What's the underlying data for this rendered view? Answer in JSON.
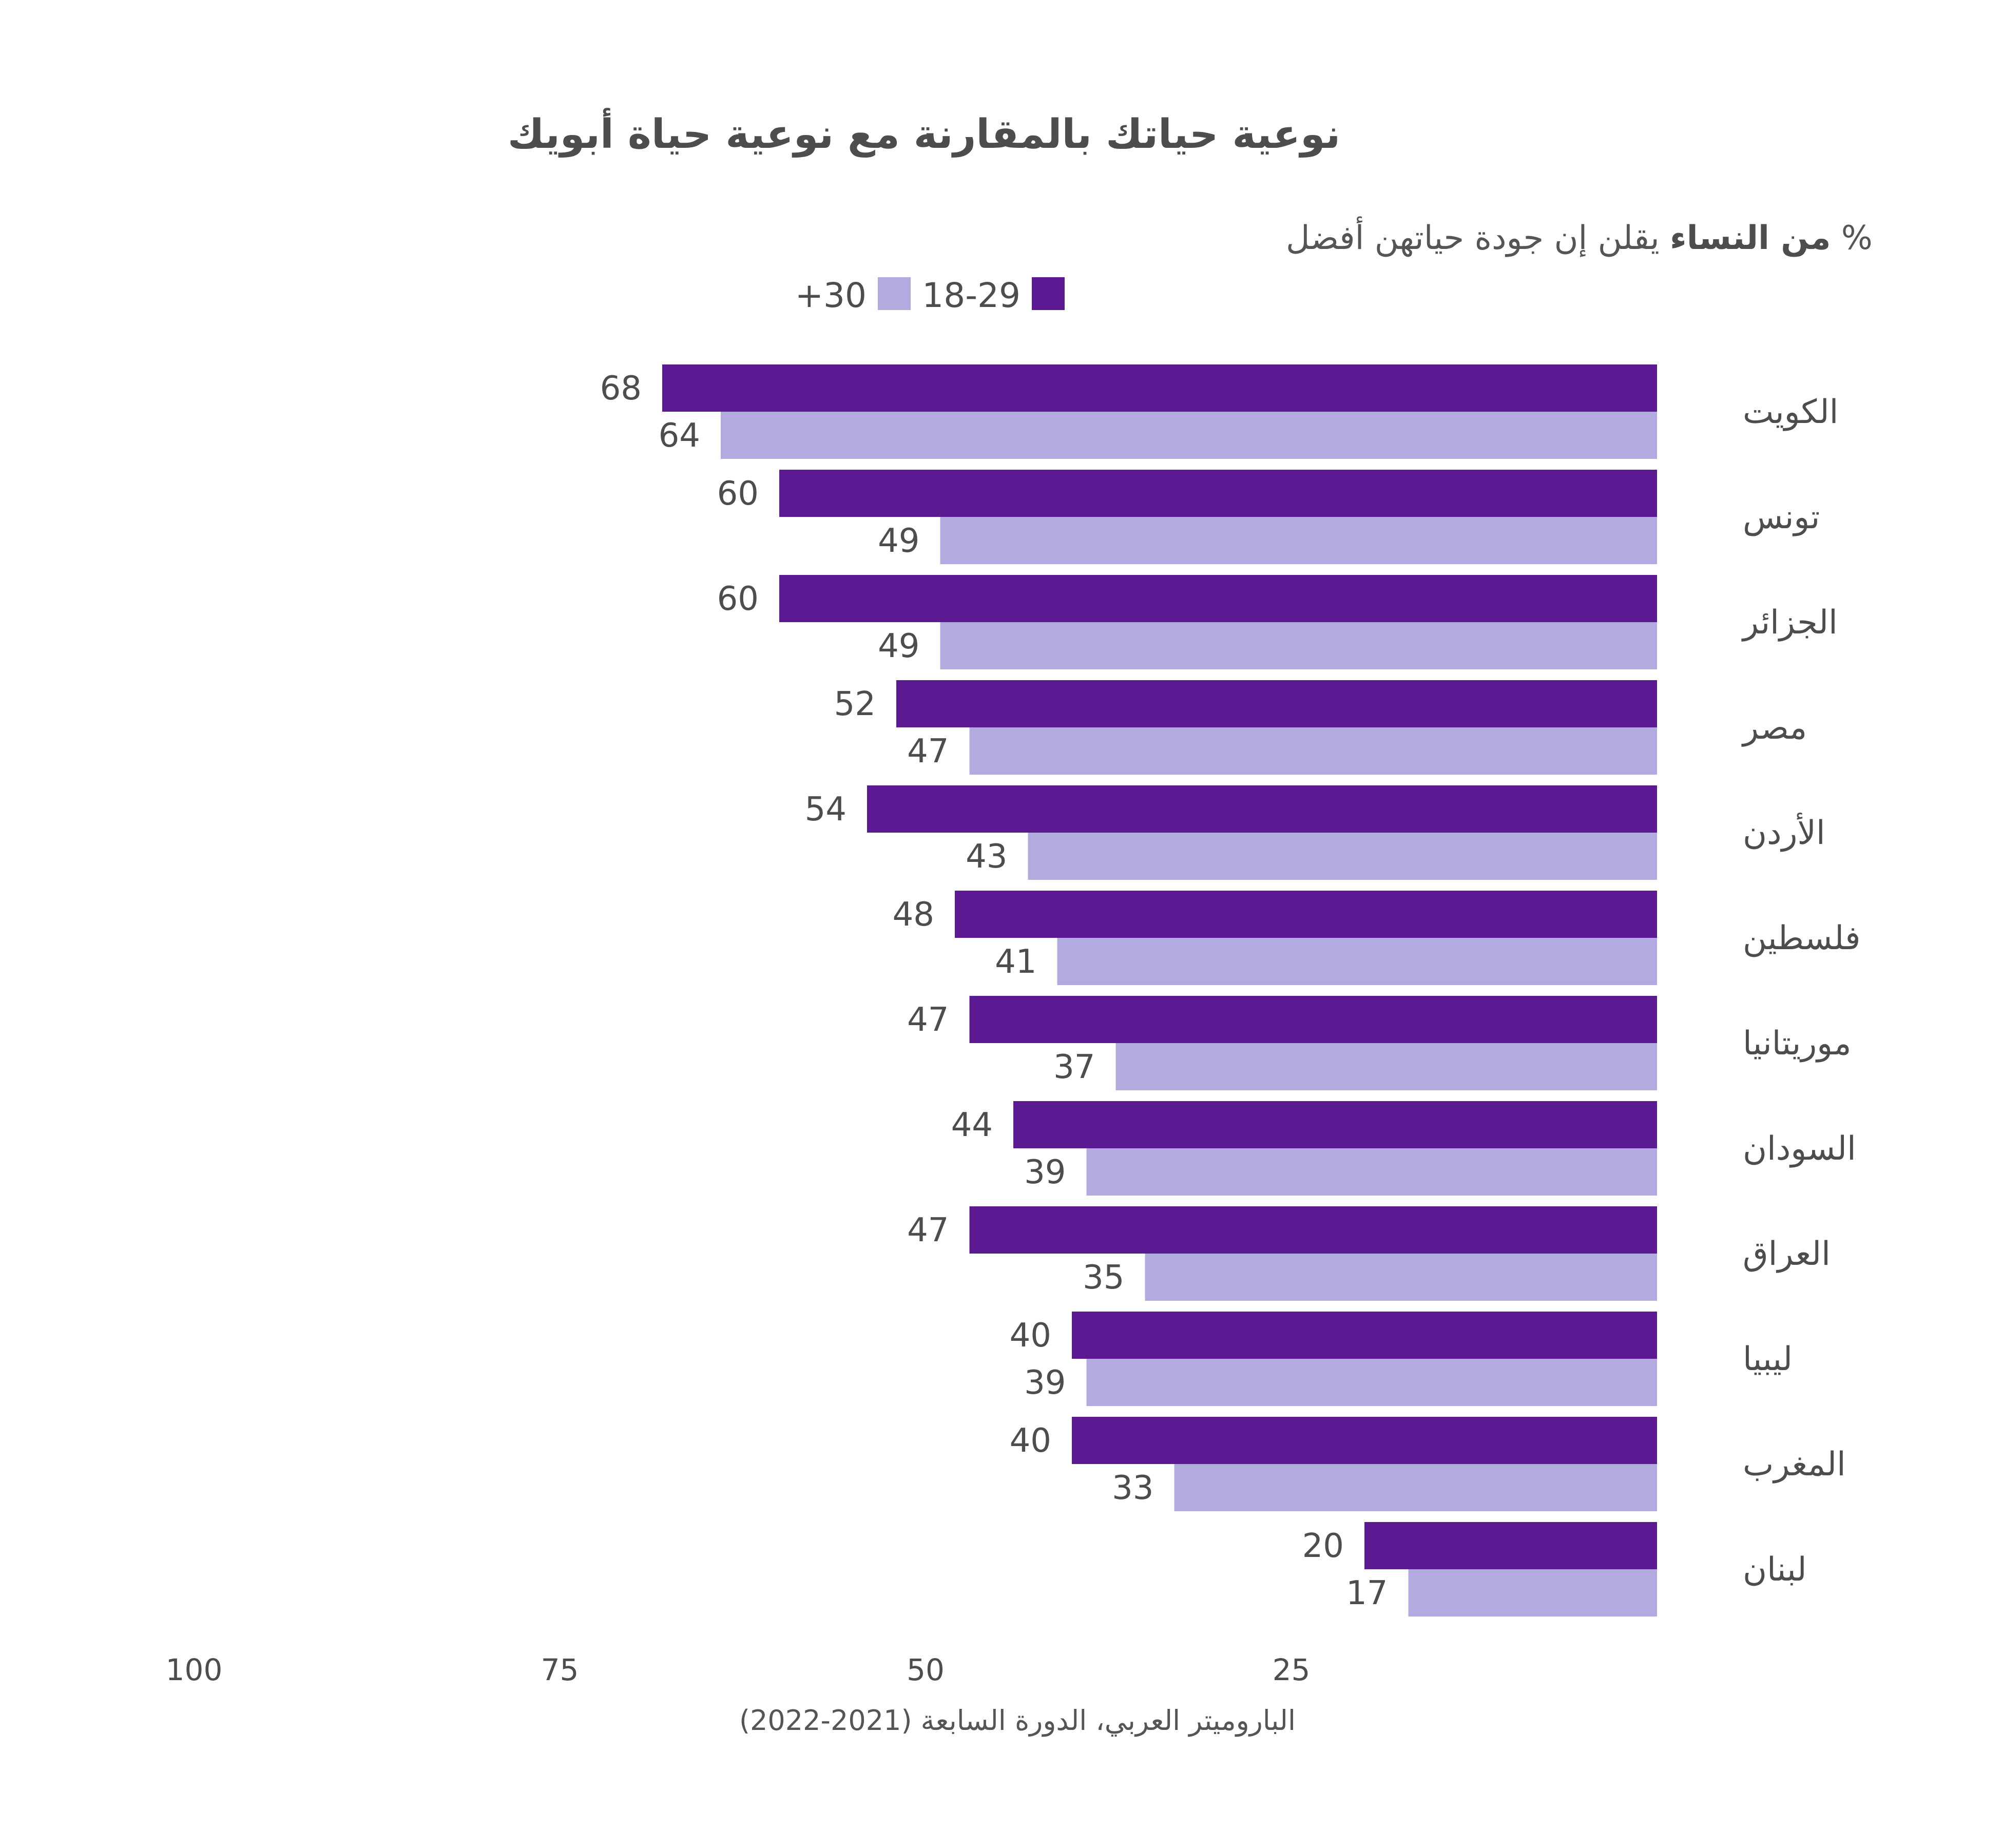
{
  "chart_data": {
    "type": "bar",
    "orientation": "horizontal",
    "direction": "right-to-left",
    "title": "نوعية حياتك بالمقارنة مع نوعية حياة أبويك",
    "subtitle": {
      "prefix": "%",
      "bold": "من النساء",
      "rest": "يقلن إن جودة حياتهن أفضل"
    },
    "legend_position": "top-center",
    "categories": [
      "الكويت",
      "تونس",
      "الجزائر",
      "مصر",
      "الأردن",
      "فلسطين",
      "موريتانيا",
      "السودان",
      "العراق",
      "ليبيا",
      "المغرب",
      "لبنان"
    ],
    "series": [
      {
        "name": "18-29",
        "color": "#5b1a91",
        "values": [
          68,
          60,
          60,
          52,
          54,
          48,
          47,
          44,
          47,
          40,
          40,
          20
        ]
      },
      {
        "name": "+30",
        "color": "#b3aae0",
        "values": [
          64,
          49,
          49,
          47,
          43,
          41,
          37,
          39,
          35,
          39,
          33,
          17
        ]
      }
    ],
    "xlim": [
      0,
      100
    ],
    "xticks": [
      25,
      50,
      75,
      100
    ],
    "grid": false,
    "source": "الباروميتر العربي، الدورة السابعة (2021-2022)"
  }
}
